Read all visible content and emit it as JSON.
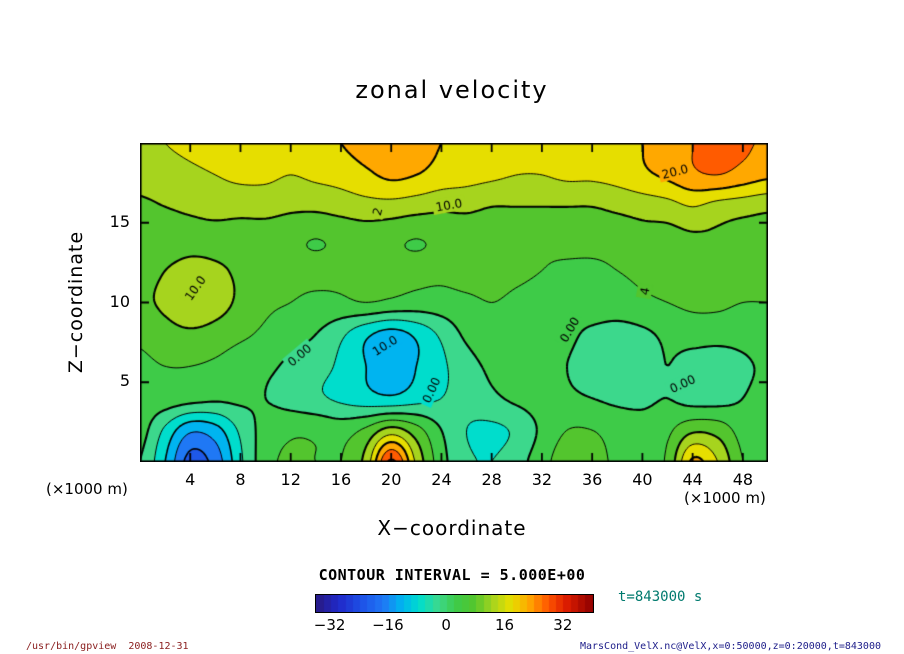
{
  "title": "zonal velocity",
  "xlabel": "X−coordinate",
  "ylabel": "Z−coordinate",
  "x_unit_left": "(×1000 m)",
  "x_unit_right": "(×1000 m)",
  "contour_interval_text": "CONTOUR INTERVAL = 5.000E+00",
  "time_label": "t=843000 s",
  "footer_left": "/usr/bin/gpview  2008-12-31",
  "footer_right": "MarsCond_VelX.nc@VelX,x=0:50000,z=0:20000,t=843000",
  "chart_data": {
    "type": "heatmap",
    "subtype": "filled-contour",
    "title": "zonal velocity",
    "xlabel": "X−coordinate",
    "ylabel": "Z−coordinate",
    "units": "×1000 m",
    "x_range": [
      0,
      50
    ],
    "z_range": [
      0,
      20
    ],
    "x_ticks": [
      4,
      8,
      12,
      16,
      20,
      24,
      28,
      32,
      36,
      40,
      44,
      48
    ],
    "z_ticks": [
      5,
      10,
      15
    ],
    "contour_interval": 5.0,
    "legend_position": "colorbar-bottom",
    "grid": false,
    "colorbar": {
      "range": [
        -36,
        40
      ],
      "ticks": [
        -32,
        -16,
        0,
        16,
        32
      ]
    },
    "x": [
      0,
      2,
      4,
      6,
      8,
      10,
      12,
      14,
      16,
      18,
      20,
      22,
      24,
      26,
      28,
      30,
      32,
      34,
      36,
      38,
      40,
      42,
      44,
      46,
      48,
      50
    ],
    "z": [
      20,
      18,
      16,
      14,
      12,
      10,
      8,
      6,
      4,
      2,
      0
    ],
    "values": [
      [
        14,
        15,
        16,
        17,
        18,
        18,
        17,
        18,
        20,
        22,
        23,
        22,
        20,
        19,
        18,
        17,
        17,
        18,
        18,
        19,
        20,
        22,
        25,
        27,
        26,
        24
      ],
      [
        12,
        13,
        14,
        15,
        16,
        16,
        15,
        16,
        17,
        19,
        21,
        20,
        18,
        17,
        16,
        15,
        15,
        16,
        16,
        17,
        19,
        21,
        24,
        25,
        23,
        21
      ],
      [
        9,
        10,
        11,
        12,
        12,
        12,
        11,
        11,
        12,
        13,
        13,
        12,
        11,
        11,
        10,
        10,
        10,
        10,
        10,
        11,
        12,
        13,
        15,
        13,
        12,
        11
      ],
      [
        7,
        7,
        8,
        8,
        7,
        7,
        6,
        5,
        6,
        7,
        6,
        5,
        6,
        7,
        7,
        6,
        6,
        7,
        7,
        7,
        8,
        8,
        9,
        9,
        8,
        8
      ],
      [
        8,
        10,
        12,
        11,
        9,
        7,
        6,
        6,
        6,
        7,
        6,
        6,
        6,
        7,
        7,
        6,
        5,
        4,
        4,
        5,
        6,
        7,
        7,
        8,
        8,
        7
      ],
      [
        9,
        11,
        14,
        12,
        9,
        6,
        5,
        4,
        4,
        5,
        4,
        3,
        3,
        4,
        5,
        4,
        3,
        2,
        3,
        3,
        4,
        5,
        6,
        6,
        5,
        5
      ],
      [
        6,
        8,
        9,
        8,
        6,
        4,
        2,
        0,
        -4,
        -9,
        -12,
        -9,
        -4,
        1,
        3,
        3,
        2,
        1,
        -1,
        -2,
        -1,
        1,
        2,
        2,
        2,
        3
      ],
      [
        4,
        5,
        5,
        4,
        2,
        1,
        -1,
        -3,
        -6,
        -10,
        -13,
        -10,
        -6,
        -2,
        1,
        2,
        1,
        0,
        -2,
        -3,
        -2,
        0,
        -2,
        -3,
        -1,
        1
      ],
      [
        3,
        3,
        2,
        1,
        1,
        0,
        -2,
        -4,
        -6,
        -8,
        -9,
        -7,
        -5,
        -3,
        -1,
        1,
        2,
        1,
        0,
        -1,
        -1,
        0,
        -2,
        -2,
        0,
        2
      ],
      [
        2,
        -6,
        -14,
        -12,
        -4,
        2,
        4,
        4,
        3,
        6,
        12,
        7,
        0,
        -5,
        -6,
        -4,
        1,
        5,
        5,
        3,
        2,
        4,
        9,
        8,
        3,
        2
      ],
      [
        0,
        -10,
        -22,
        -18,
        -6,
        3,
        6,
        5,
        5,
        12,
        31,
        14,
        2,
        -4,
        -5,
        -2,
        3,
        8,
        7,
        4,
        3,
        6,
        21,
        15,
        5,
        3
      ]
    ],
    "contour_labels": [
      {
        "text": "20.0",
        "x": 42.6,
        "z": 18.2,
        "angle": -14
      },
      {
        "text": "10.0",
        "x": 24.6,
        "z": 16.1,
        "angle": -10
      },
      {
        "text": "2",
        "x": 18.9,
        "z": 15.7,
        "angle": -75
      },
      {
        "text": "10.0",
        "x": 4.4,
        "z": 10.9,
        "angle": -55
      },
      {
        "text": "0.00",
        "x": 12.7,
        "z": 6.7,
        "angle": -40
      },
      {
        "text": "10.0",
        "x": 19.5,
        "z": 7.3,
        "angle": -32
      },
      {
        "text": "0.00",
        "x": 23.2,
        "z": 4.5,
        "angle": -65
      },
      {
        "text": "4",
        "x": 40.2,
        "z": 10.7,
        "angle": -80
      },
      {
        "text": "0.00",
        "x": 34.2,
        "z": 8.3,
        "angle": -60
      },
      {
        "text": "0.00",
        "x": 43.2,
        "z": 4.9,
        "angle": -25
      }
    ],
    "colormap": [
      [
        0.0,
        "#281a82"
      ],
      [
        0.08,
        "#2028c8"
      ],
      [
        0.16,
        "#1e50e6"
      ],
      [
        0.243,
        "#1f78f5"
      ],
      [
        0.309,
        "#00b4f0"
      ],
      [
        0.375,
        "#00ddcc"
      ],
      [
        0.441,
        "#3cd88c"
      ],
      [
        0.507,
        "#3ecb48"
      ],
      [
        0.572,
        "#53c52e"
      ],
      [
        0.638,
        "#a6d41e"
      ],
      [
        0.704,
        "#e6de00"
      ],
      [
        0.77,
        "#ffa800"
      ],
      [
        0.836,
        "#ff5a00"
      ],
      [
        0.902,
        "#df1e00"
      ],
      [
        1.0,
        "#8f0000"
      ]
    ]
  }
}
